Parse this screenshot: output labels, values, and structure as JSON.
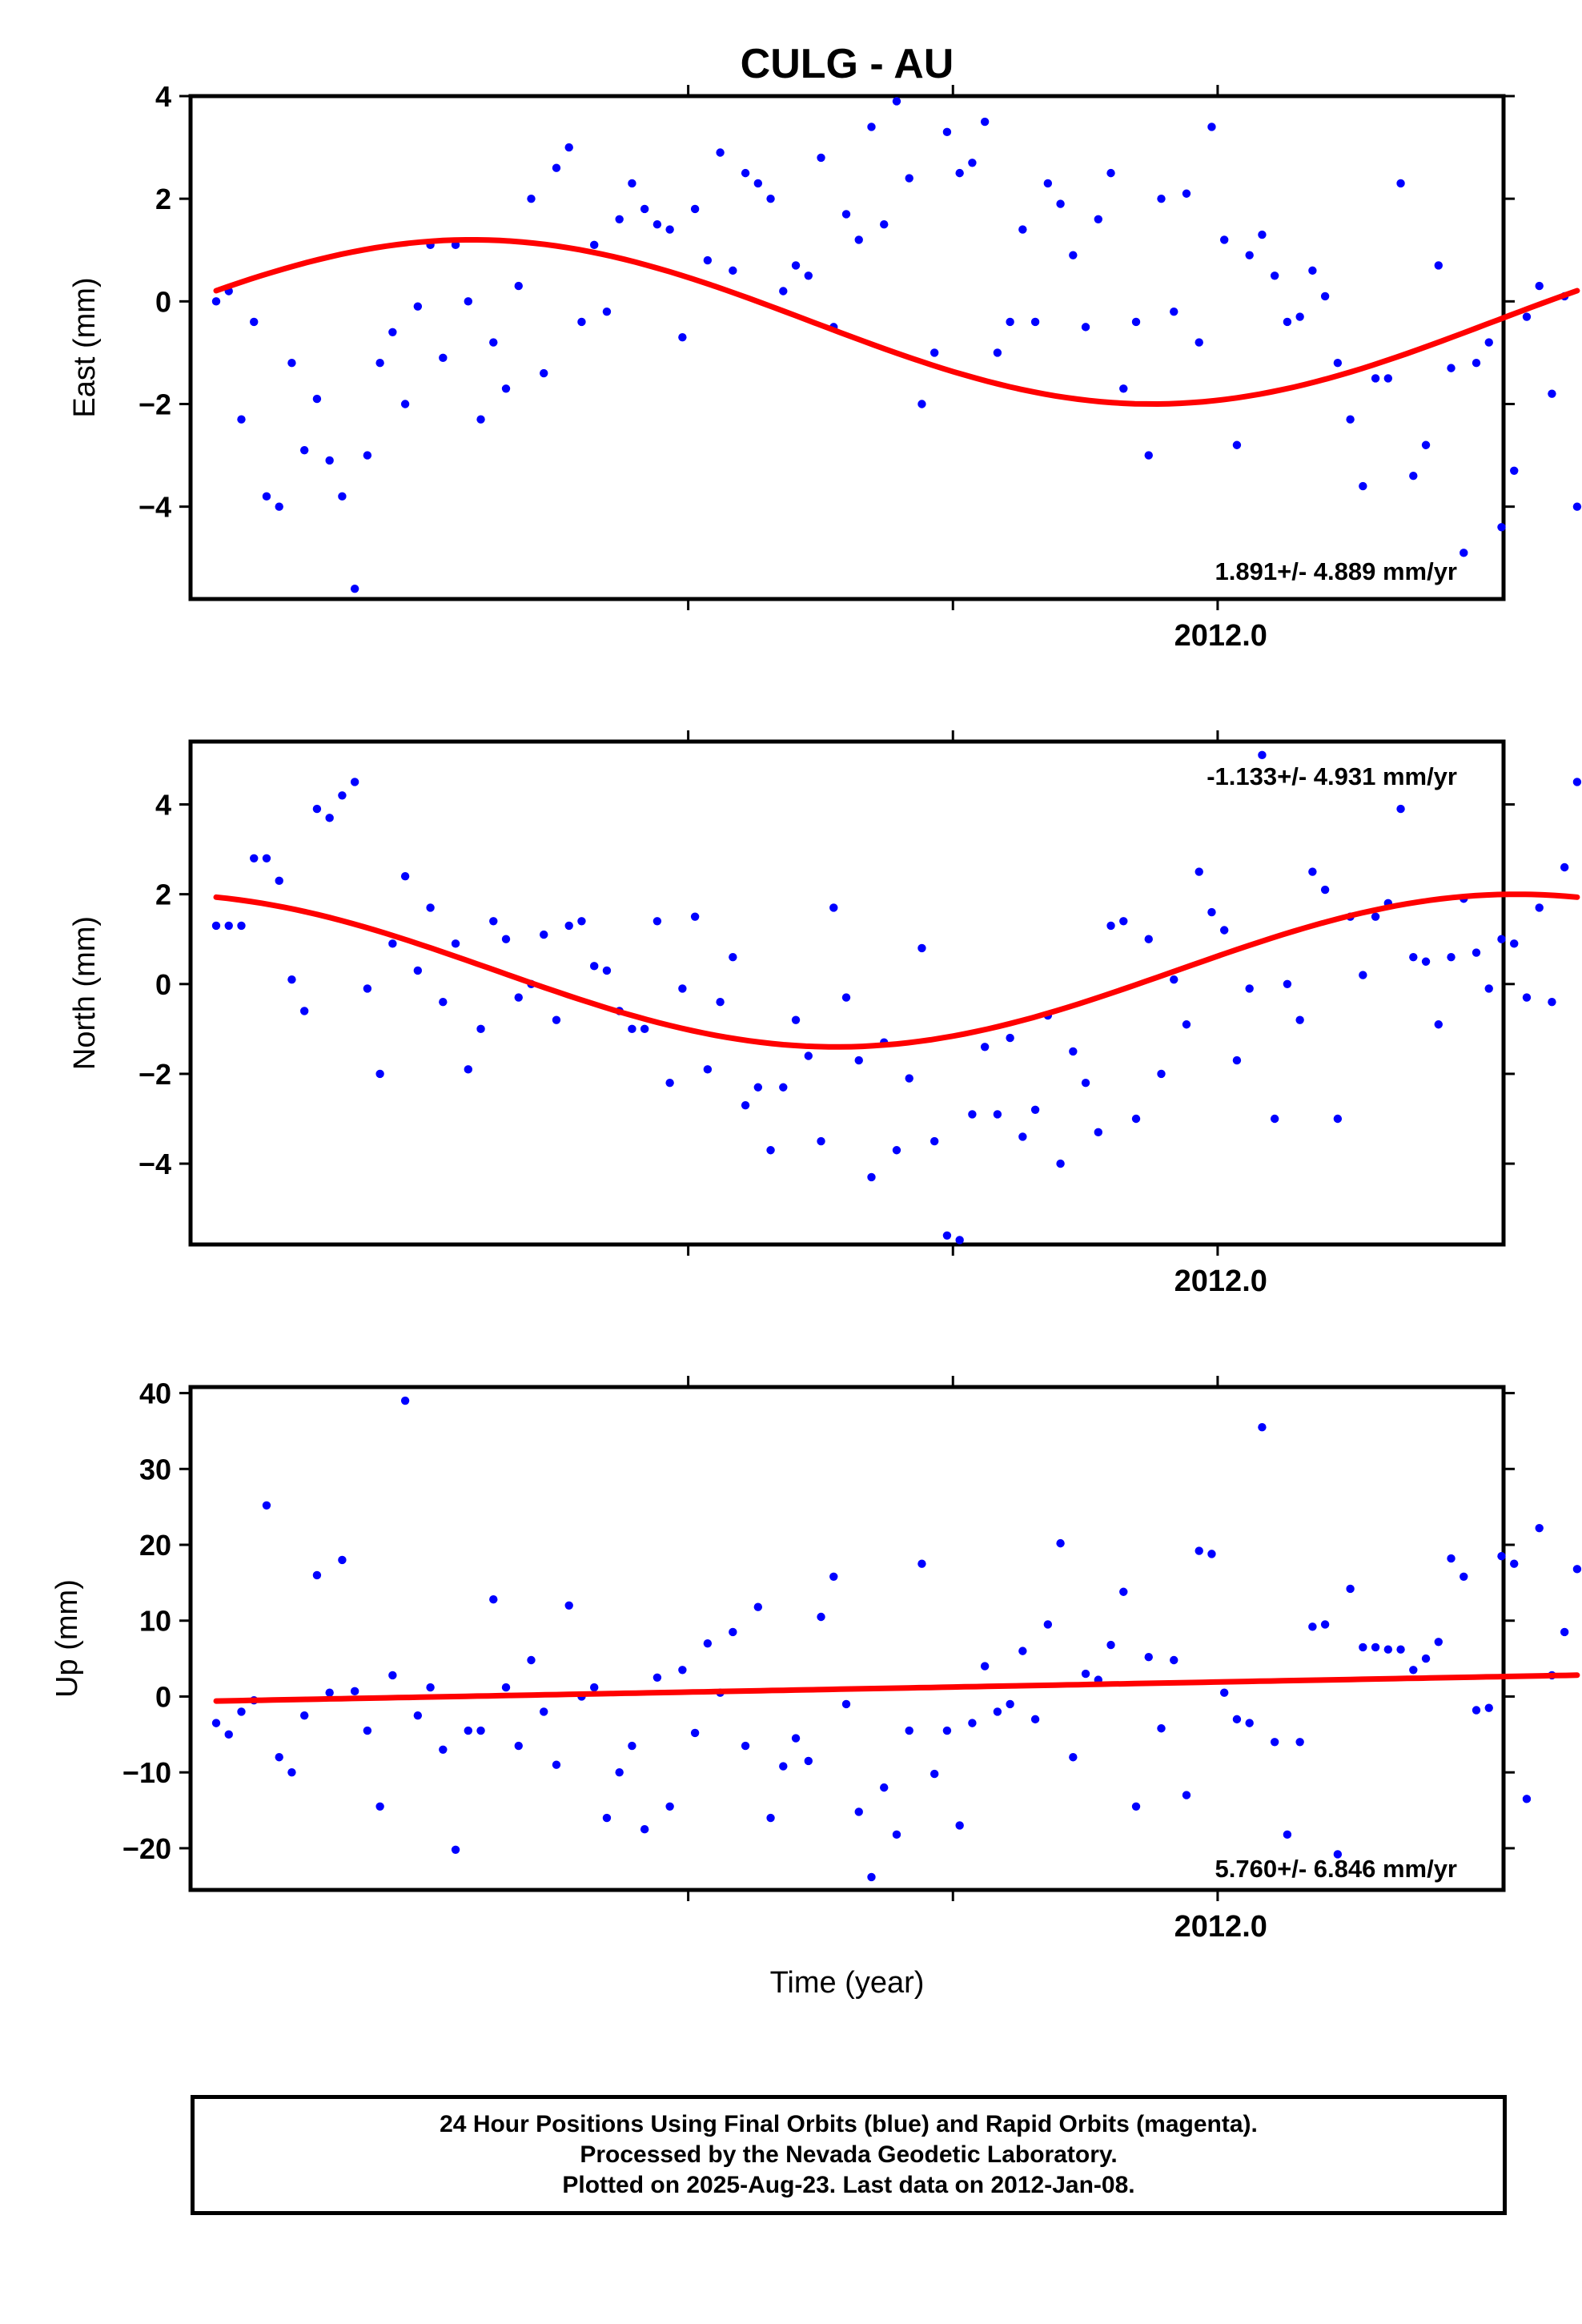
{
  "chart_data": [
    {
      "type": "scatter",
      "title": "CULG - AU",
      "ylabel": "East (mm)",
      "ylim": [
        -5.8,
        4.0
      ],
      "yticks": [
        4,
        2,
        0,
        -2,
        -4
      ],
      "xlim": [
        2011.03,
        2012.27
      ],
      "xticks": [
        2011.5,
        2011.75,
        2012.0
      ],
      "xtick_label": "2012.0",
      "rate": "1.891+/- 4.889 mm/yr",
      "point_color": "#0000ff",
      "fit_color": "#ff0000",
      "fit": {
        "offset": -0.4,
        "amp": 1.6,
        "phase": 0.39,
        "slope": 0.0
      },
      "y": [
        0.0,
        0.2,
        -2.3,
        -0.4,
        -3.8,
        -4.0,
        -1.2,
        -2.9,
        -1.9,
        -3.1,
        -3.8,
        -5.6,
        -3.0,
        -1.2,
        -0.6,
        -2.0,
        -0.1,
        1.1,
        -1.1,
        1.1,
        0.0,
        -2.3,
        -0.8,
        -1.7,
        0.3,
        2.0,
        -1.4,
        2.6,
        3.0,
        -0.4,
        1.1,
        -0.2,
        1.6,
        2.3,
        1.8,
        1.5,
        1.4,
        -0.7,
        1.8,
        0.8,
        2.9,
        0.6,
        2.5,
        2.3,
        2.0,
        0.2,
        0.7,
        0.5,
        2.8,
        -0.5,
        1.7,
        1.2,
        3.4,
        1.5,
        3.9,
        2.4,
        -2.0,
        -1.0,
        3.3,
        2.5,
        2.7,
        3.5,
        -1.0,
        -0.4,
        1.4,
        -0.4,
        2.3,
        1.9,
        0.9,
        -0.5,
        1.6,
        2.5,
        -1.7,
        -0.4,
        -3.0,
        2.0,
        -0.2,
        2.1,
        -0.8,
        3.4,
        1.2,
        -2.8,
        0.9,
        1.3,
        0.5,
        -0.4,
        -0.3,
        0.6,
        0.1,
        -1.2,
        -2.3,
        -3.6,
        -1.5,
        -1.5,
        2.3,
        -3.4,
        -2.8,
        0.7,
        -1.3,
        -4.9,
        -1.2,
        -0.8,
        -4.4,
        -3.3,
        -0.3,
        0.3,
        -1.8,
        0.1,
        -4.0
      ]
    },
    {
      "type": "scatter",
      "ylabel": "North (mm)",
      "ylim": [
        -5.8,
        5.4
      ],
      "yticks": [
        4,
        2,
        0,
        -2,
        -4
      ],
      "xlim": [
        2011.03,
        2012.27
      ],
      "xticks": [
        2011.5,
        2011.75,
        2012.0
      ],
      "xtick_label": "2012.0",
      "rate": "-1.133+/- 4.931 mm/yr",
      "point_color": "#0000ff",
      "fit_color": "#ff0000",
      "fit": {
        "offset": 0.3,
        "amp": 1.7,
        "phase": 1.85,
        "slope": 0.0
      },
      "y": [
        1.3,
        1.3,
        1.3,
        2.8,
        2.8,
        2.3,
        0.1,
        -0.6,
        3.9,
        3.7,
        4.2,
        4.5,
        -0.1,
        -2.0,
        0.9,
        2.4,
        0.3,
        1.7,
        -0.4,
        0.9,
        -1.9,
        -1.0,
        1.4,
        1.0,
        -0.3,
        0.0,
        1.1,
        -0.8,
        1.3,
        1.4,
        0.4,
        0.3,
        -0.6,
        -1.0,
        -1.0,
        1.4,
        -2.2,
        -0.1,
        1.5,
        -1.9,
        -0.4,
        0.6,
        -2.7,
        -2.3,
        -3.7,
        -2.3,
        -0.8,
        -1.6,
        -3.5,
        1.7,
        -0.3,
        -1.7,
        -4.3,
        -1.3,
        -3.7,
        -2.1,
        0.8,
        -3.5,
        -5.6,
        -5.7,
        -2.9,
        -1.4,
        -2.9,
        -1.2,
        -3.4,
        -2.8,
        -0.7,
        -4.0,
        -1.5,
        -2.2,
        -3.3,
        1.3,
        1.4,
        -3.0,
        1.0,
        -2.0,
        0.1,
        -0.9,
        2.5,
        1.6,
        1.2,
        -1.7,
        -0.1,
        5.1,
        -3.0,
        0.0,
        -0.8,
        2.5,
        2.1,
        -3.0,
        1.5,
        0.2,
        1.5,
        1.8,
        3.9,
        0.6,
        0.5,
        -0.9,
        0.6,
        1.9,
        0.7,
        -0.1,
        1.0,
        0.9,
        -0.3,
        1.7,
        -0.4,
        2.6,
        4.5
      ]
    },
    {
      "type": "scatter",
      "ylabel": "Up (mm)",
      "xlabel": "Time (year)",
      "ylim": [
        -25.5,
        40.8
      ],
      "yticks": [
        40,
        30,
        20,
        10,
        0,
        -10,
        -20
      ],
      "xlim": [
        2011.03,
        2012.27
      ],
      "xticks": [
        2011.5,
        2011.75,
        2012.0
      ],
      "xtick_label": "2012.0",
      "rate": "5.760+/- 6.846 mm/yr",
      "point_color": "#0000ff",
      "fit_color": "#ff0000",
      "fit": {
        "offset": 0.9,
        "amp": 0.0,
        "phase": 0.0,
        "slope": 2.8
      },
      "y": [
        -3.5,
        -5.0,
        -2.0,
        -0.5,
        25.2,
        -8.0,
        -10.0,
        -2.5,
        16.0,
        0.5,
        18.0,
        0.7,
        -4.5,
        -14.5,
        2.8,
        39.0,
        -2.5,
        1.2,
        -7.0,
        -20.2,
        -4.5,
        -4.5,
        12.8,
        1.2,
        -6.5,
        4.8,
        -2.0,
        -9.0,
        12.0,
        0.0,
        1.2,
        -16.0,
        -10.0,
        -6.5,
        -17.5,
        2.5,
        -14.5,
        3.5,
        -4.8,
        7.0,
        0.5,
        8.5,
        -6.5,
        11.8,
        -16.0,
        -9.2,
        -5.5,
        -8.5,
        10.5,
        15.8,
        -1.0,
        -15.2,
        -23.8,
        -12.0,
        -18.2,
        -4.5,
        17.5,
        -10.2,
        -4.5,
        -17.0,
        -3.5,
        4.0,
        -2.0,
        -1.0,
        6.0,
        -3.0,
        9.5,
        20.2,
        -8.0,
        3.0,
        2.2,
        6.8,
        13.8,
        -14.5,
        5.2,
        -4.2,
        4.8,
        -13.0,
        19.2,
        18.8,
        0.5,
        -3.0,
        -3.5,
        35.5,
        -6.0,
        -18.2,
        -6.0,
        9.2,
        9.5,
        -20.8,
        14.2,
        6.5,
        6.5,
        6.2,
        6.2,
        3.5,
        5.0,
        7.2,
        18.2,
        15.8,
        -1.8,
        -1.5,
        18.5,
        17.5,
        -13.5,
        22.2,
        2.8,
        8.5,
        16.8
      ]
    }
  ],
  "footer": {
    "line1": "24 Hour Positions Using Final Orbits (blue) and Rapid Orbits (magenta).",
    "line2": "Processed by the Nevada Geodetic Laboratory.",
    "line3": "Plotted on 2025-Aug-23. Last data on 2012-Jan-08."
  }
}
